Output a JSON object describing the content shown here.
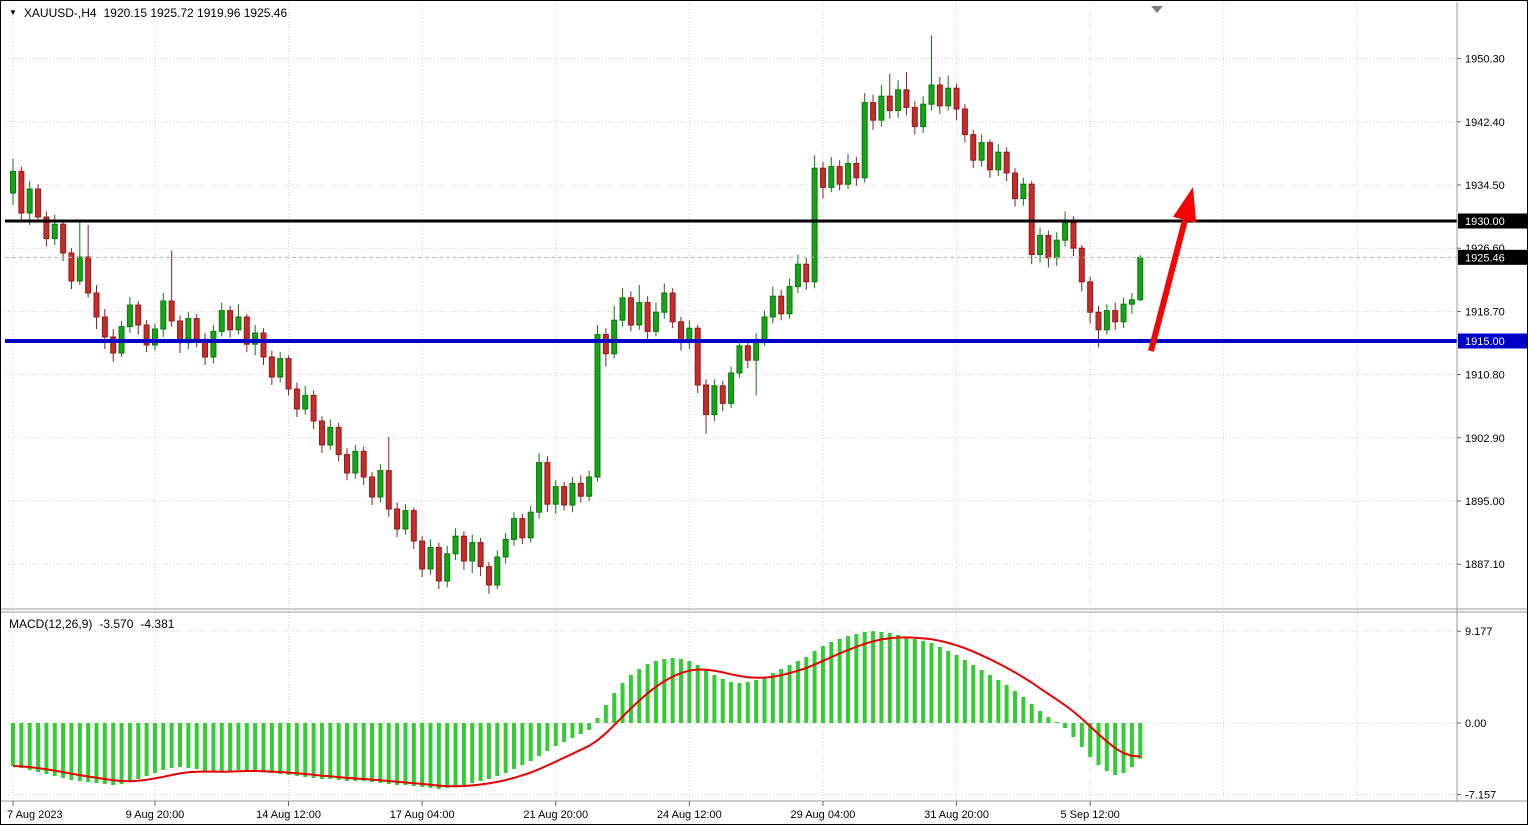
{
  "titlebar": {
    "dropdown_icon": "▼",
    "symbol_period": "XAUUSD-,H4",
    "ohlc": "1920.15 1925.72 1919.96 1925.46"
  },
  "macd_panel": {
    "label": "MACD(12,26,9)",
    "value_main": "-3.570",
    "value_signal": "-4.381"
  },
  "colors": {
    "background": "#ffffff",
    "grid": "#d2d2d2",
    "candle_up": "#17a317",
    "candle_up_border": "#0b7a0b",
    "candle_down": "#c92a2a",
    "candle_down_border": "#8f1d1d",
    "macd_histogram": "#33cc33",
    "macd_signal": "#e60000",
    "support_line": "#0000c8",
    "resistance_line": "#000000",
    "current_price_tag": "#000000",
    "arrow": "#f40404",
    "axis_text": "#000000"
  },
  "chart_data": {
    "type": "candlestick",
    "symbol": "XAUUSD-",
    "timeframe": "H4",
    "title": "XAUUSD-,H4",
    "current_candle": {
      "open": 1920.15,
      "high": 1925.72,
      "low": 1919.96,
      "close": 1925.46
    },
    "y_axis": {
      "labels": [
        "1950.30",
        "1942.40",
        "1934.50",
        "1926.60",
        "1918.70",
        "1910.80",
        "1902.90",
        "1895.00",
        "1887.10"
      ],
      "values": [
        1950.3,
        1942.4,
        1934.5,
        1926.6,
        1918.7,
        1910.8,
        1902.9,
        1895.0,
        1887.1
      ]
    },
    "x_axis": {
      "labels": [
        {
          "text": "7 Aug 2023",
          "index": 0
        },
        {
          "text": "9 Aug 20:00",
          "index": 17
        },
        {
          "text": "14 Aug 12:00",
          "index": 33
        },
        {
          "text": "17 Aug 04:00",
          "index": 49
        },
        {
          "text": "21 Aug 20:00",
          "index": 65
        },
        {
          "text": "24 Aug 12:00",
          "index": 81
        },
        {
          "text": "29 Aug 04:00",
          "index": 97
        },
        {
          "text": "31 Aug 20:00",
          "index": 113
        },
        {
          "text": "5 Sep 12:00",
          "index": 129
        }
      ]
    },
    "levels": {
      "resistance": {
        "price": 1930.0,
        "label": "1930.00"
      },
      "support": {
        "price": 1915.0,
        "label": "1915.00"
      },
      "current_price": {
        "price": 1925.46,
        "label": "1925.46"
      }
    },
    "annotation_arrow": {
      "direction": "up",
      "from_price": 1915.0,
      "to_price": 1934.8
    },
    "candles_ohlc": [
      [
        1933.5,
        1937.8,
        1932.0,
        1936.2
      ],
      [
        1936.2,
        1936.8,
        1930.2,
        1931.0
      ],
      [
        1931.0,
        1935.0,
        1929.5,
        1934.0
      ],
      [
        1934.0,
        1934.6,
        1929.8,
        1930.5
      ],
      [
        1930.5,
        1931.2,
        1926.8,
        1927.8
      ],
      [
        1927.8,
        1930.8,
        1927.0,
        1929.6
      ],
      [
        1929.6,
        1930.0,
        1925.0,
        1926.0
      ],
      [
        1926.0,
        1926.6,
        1921.5,
        1922.5
      ],
      [
        1922.5,
        1929.8,
        1922.0,
        1925.5
      ],
      [
        1925.5,
        1929.5,
        1920.4,
        1921.0
      ],
      [
        1921.0,
        1922.0,
        1916.5,
        1918.0
      ],
      [
        1918.0,
        1919.0,
        1914.0,
        1915.5
      ],
      [
        1915.5,
        1916.5,
        1912.4,
        1913.5
      ],
      [
        1913.5,
        1917.5,
        1913.0,
        1916.8
      ],
      [
        1916.8,
        1920.5,
        1916.0,
        1919.5
      ],
      [
        1919.5,
        1920.0,
        1915.8,
        1917.0
      ],
      [
        1917.0,
        1917.6,
        1913.6,
        1914.5
      ],
      [
        1914.5,
        1917.2,
        1913.8,
        1916.5
      ],
      [
        1916.5,
        1921.0,
        1915.5,
        1920.0
      ],
      [
        1920.0,
        1926.3,
        1916.8,
        1917.5
      ],
      [
        1917.5,
        1918.2,
        1913.5,
        1914.8
      ],
      [
        1914.8,
        1918.6,
        1914.0,
        1917.8
      ],
      [
        1917.8,
        1918.4,
        1914.2,
        1915.2
      ],
      [
        1915.2,
        1916.0,
        1912.0,
        1913.0
      ],
      [
        1913.0,
        1917.0,
        1912.2,
        1916.2
      ],
      [
        1916.2,
        1919.8,
        1915.6,
        1918.8
      ],
      [
        1918.8,
        1919.4,
        1915.4,
        1916.4
      ],
      [
        1916.4,
        1919.6,
        1915.8,
        1918.0
      ],
      [
        1918.0,
        1918.4,
        1913.6,
        1914.6
      ],
      [
        1914.6,
        1917.0,
        1913.2,
        1916.0
      ],
      [
        1916.0,
        1916.6,
        1912.0,
        1913.0
      ],
      [
        1913.0,
        1913.8,
        1909.5,
        1910.5
      ],
      [
        1910.5,
        1913.6,
        1909.8,
        1912.8
      ],
      [
        1912.8,
        1913.2,
        1908.2,
        1909.0
      ],
      [
        1909.0,
        1909.8,
        1905.5,
        1906.5
      ],
      [
        1906.5,
        1909.4,
        1905.8,
        1908.2
      ],
      [
        1908.2,
        1908.8,
        1904.0,
        1905.0
      ],
      [
        1905.0,
        1905.6,
        1901.0,
        1902.0
      ],
      [
        1902.0,
        1905.2,
        1901.4,
        1904.2
      ],
      [
        1904.2,
        1904.8,
        1900.0,
        1900.8
      ],
      [
        1900.8,
        1901.6,
        1897.6,
        1898.5
      ],
      [
        1898.5,
        1902.0,
        1897.8,
        1901.2
      ],
      [
        1901.2,
        1901.8,
        1897.0,
        1898.0
      ],
      [
        1898.0,
        1898.6,
        1894.5,
        1895.5
      ],
      [
        1895.5,
        1899.6,
        1894.8,
        1898.8
      ],
      [
        1898.8,
        1903.0,
        1893.0,
        1894.0
      ],
      [
        1894.0,
        1894.8,
        1890.5,
        1891.5
      ],
      [
        1891.5,
        1894.6,
        1890.8,
        1893.8
      ],
      [
        1893.8,
        1894.2,
        1889.0,
        1890.0
      ],
      [
        1890.0,
        1890.6,
        1885.5,
        1886.5
      ],
      [
        1886.5,
        1890.2,
        1885.8,
        1889.2
      ],
      [
        1889.2,
        1889.8,
        1884.0,
        1885.0
      ],
      [
        1885.0,
        1889.4,
        1884.2,
        1888.4
      ],
      [
        1888.4,
        1891.6,
        1887.6,
        1890.6
      ],
      [
        1890.6,
        1891.2,
        1886.4,
        1887.5
      ],
      [
        1887.5,
        1890.8,
        1886.0,
        1889.8
      ],
      [
        1889.8,
        1890.4,
        1885.6,
        1886.8
      ],
      [
        1886.8,
        1887.4,
        1883.4,
        1884.5
      ],
      [
        1884.5,
        1888.8,
        1884.0,
        1888.0
      ],
      [
        1888.0,
        1891.0,
        1887.2,
        1890.2
      ],
      [
        1890.2,
        1893.6,
        1889.4,
        1892.8
      ],
      [
        1892.8,
        1893.4,
        1889.6,
        1890.4
      ],
      [
        1890.4,
        1894.4,
        1889.8,
        1893.6
      ],
      [
        1893.6,
        1901.0,
        1892.8,
        1899.8
      ],
      [
        1899.8,
        1900.6,
        1893.6,
        1894.6
      ],
      [
        1894.6,
        1897.6,
        1893.4,
        1896.8
      ],
      [
        1896.8,
        1897.4,
        1893.8,
        1894.5
      ],
      [
        1894.5,
        1898.0,
        1893.6,
        1897.2
      ],
      [
        1897.2,
        1898.2,
        1894.8,
        1895.6
      ],
      [
        1895.6,
        1898.8,
        1895.0,
        1898.0
      ],
      [
        1898.0,
        1917.0,
        1897.4,
        1915.8
      ],
      [
        1915.8,
        1916.6,
        1911.8,
        1913.4
      ],
      [
        1913.4,
        1919.4,
        1912.8,
        1917.6
      ],
      [
        1917.6,
        1921.6,
        1916.8,
        1920.4
      ],
      [
        1920.4,
        1921.2,
        1916.2,
        1917.0
      ],
      [
        1917.0,
        1922.0,
        1916.4,
        1919.8
      ],
      [
        1919.8,
        1920.6,
        1915.2,
        1916.2
      ],
      [
        1916.2,
        1919.8,
        1915.6,
        1918.6
      ],
      [
        1918.6,
        1922.2,
        1917.8,
        1921.0
      ],
      [
        1921.0,
        1921.6,
        1916.6,
        1917.4
      ],
      [
        1917.4,
        1918.0,
        1913.8,
        1914.8
      ],
      [
        1914.8,
        1917.6,
        1914.0,
        1916.6
      ],
      [
        1916.6,
        1917.0,
        1908.5,
        1909.5
      ],
      [
        1909.5,
        1910.2,
        1903.4,
        1905.8
      ],
      [
        1905.8,
        1910.2,
        1905.0,
        1909.4
      ],
      [
        1909.4,
        1910.0,
        1906.2,
        1907.2
      ],
      [
        1907.2,
        1911.8,
        1906.6,
        1911.0
      ],
      [
        1911.0,
        1915.2,
        1910.4,
        1914.4
      ],
      [
        1914.4,
        1915.0,
        1911.6,
        1912.6
      ],
      [
        1912.6,
        1916.0,
        1908.2,
        1915.2
      ],
      [
        1915.2,
        1918.8,
        1914.4,
        1918.0
      ],
      [
        1918.0,
        1921.8,
        1917.2,
        1920.6
      ],
      [
        1920.6,
        1921.4,
        1917.6,
        1918.4
      ],
      [
        1918.4,
        1922.8,
        1917.8,
        1921.8
      ],
      [
        1921.8,
        1925.8,
        1921.0,
        1924.6
      ],
      [
        1924.6,
        1925.4,
        1921.4,
        1922.4
      ],
      [
        1922.4,
        1938.2,
        1921.6,
        1936.6
      ],
      [
        1936.6,
        1937.4,
        1932.8,
        1934.2
      ],
      [
        1934.2,
        1938.0,
        1933.6,
        1936.8
      ],
      [
        1936.8,
        1937.6,
        1933.8,
        1934.6
      ],
      [
        1934.6,
        1938.4,
        1934.0,
        1937.2
      ],
      [
        1937.2,
        1938.0,
        1934.4,
        1935.4
      ],
      [
        1935.4,
        1946.0,
        1934.8,
        1944.8
      ],
      [
        1944.8,
        1945.8,
        1941.4,
        1942.6
      ],
      [
        1942.6,
        1947.0,
        1941.8,
        1945.6
      ],
      [
        1945.6,
        1948.4,
        1942.8,
        1943.8
      ],
      [
        1943.8,
        1947.6,
        1942.9,
        1946.4
      ],
      [
        1946.4,
        1948.6,
        1943.2,
        1944.2
      ],
      [
        1944.2,
        1945.0,
        1940.8,
        1941.8
      ],
      [
        1941.8,
        1945.6,
        1941.0,
        1944.6
      ],
      [
        1944.6,
        1953.2,
        1943.8,
        1947.0
      ],
      [
        1947.0,
        1948.0,
        1943.4,
        1944.4
      ],
      [
        1944.4,
        1948.2,
        1943.8,
        1946.6
      ],
      [
        1946.6,
        1947.2,
        1942.6,
        1944.0
      ],
      [
        1944.0,
        1944.6,
        1939.8,
        1940.8
      ],
      [
        1940.8,
        1941.4,
        1936.6,
        1937.6
      ],
      [
        1937.6,
        1940.8,
        1936.8,
        1939.8
      ],
      [
        1939.8,
        1940.2,
        1935.4,
        1936.4
      ],
      [
        1936.4,
        1939.6,
        1935.6,
        1938.6
      ],
      [
        1938.6,
        1939.2,
        1935.0,
        1936.0
      ],
      [
        1936.0,
        1936.6,
        1931.8,
        1932.8
      ],
      [
        1932.8,
        1935.4,
        1931.9,
        1934.6
      ],
      [
        1934.6,
        1935.0,
        1924.6,
        1925.8
      ],
      [
        1925.8,
        1929.2,
        1924.8,
        1928.2
      ],
      [
        1928.2,
        1928.8,
        1924.2,
        1925.4
      ],
      [
        1925.4,
        1928.6,
        1924.4,
        1927.6
      ],
      [
        1927.6,
        1931.2,
        1926.8,
        1929.8
      ],
      [
        1929.8,
        1930.6,
        1925.6,
        1926.6
      ],
      [
        1926.6,
        1927.0,
        1921.2,
        1922.4
      ],
      [
        1922.4,
        1923.0,
        1917.2,
        1918.6
      ],
      [
        1918.6,
        1919.4,
        1914.2,
        1916.4
      ],
      [
        1916.4,
        1919.6,
        1915.8,
        1918.8
      ],
      [
        1918.8,
        1919.8,
        1916.4,
        1917.4
      ],
      [
        1917.4,
        1920.4,
        1916.6,
        1919.6
      ],
      [
        1919.6,
        1921.0,
        1918.4,
        1920.15
      ],
      [
        1920.15,
        1925.72,
        1919.96,
        1925.46
      ]
    ],
    "macd": {
      "label": "MACD(12,26,9)",
      "main_last": -3.57,
      "signal_last": -4.381,
      "y_axis": {
        "labels": [
          "9.177",
          "0.00",
          "-7.157"
        ],
        "values": [
          9.177,
          0,
          -7.157
        ]
      },
      "histogram": [
        -4.3,
        -4.5,
        -4.7,
        -4.9,
        -5.1,
        -5.3,
        -5.5,
        -5.7,
        -5.8,
        -5.9,
        -6.0,
        -6.1,
        -6.2,
        -6.1,
        -5.9,
        -5.6,
        -5.3,
        -5.0,
        -4.7,
        -4.5,
        -4.4,
        -4.5,
        -4.6,
        -4.8,
        -4.9,
        -4.9,
        -4.8,
        -4.7,
        -4.7,
        -4.8,
        -4.9,
        -5.0,
        -5.1,
        -5.2,
        -5.3,
        -5.4,
        -5.5,
        -5.6,
        -5.6,
        -5.7,
        -5.8,
        -5.8,
        -5.8,
        -5.9,
        -6.0,
        -6.1,
        -6.2,
        -6.2,
        -6.3,
        -6.4,
        -6.5,
        -6.6,
        -6.5,
        -6.4,
        -6.2,
        -6.0,
        -5.8,
        -5.6,
        -5.3,
        -5.0,
        -4.6,
        -4.2,
        -3.8,
        -3.3,
        -2.8,
        -2.3,
        -1.9,
        -1.5,
        -1.1,
        -0.7,
        0.5,
        1.8,
        3.0,
        4.0,
        4.8,
        5.4,
        5.9,
        6.2,
        6.4,
        6.5,
        6.4,
        6.2,
        5.8,
        5.3,
        4.8,
        4.4,
        4.1,
        4.0,
        4.1,
        4.3,
        4.6,
        5.0,
        5.4,
        5.8,
        6.2,
        6.6,
        7.2,
        7.7,
        8.1,
        8.4,
        8.7,
        8.9,
        9.1,
        9.177,
        9.1,
        9.0,
        8.8,
        8.6,
        8.4,
        8.2,
        8.0,
        7.6,
        7.2,
        6.8,
        6.3,
        5.8,
        5.3,
        4.8,
        4.3,
        3.8,
        3.2,
        2.6,
        1.9,
        1.2,
        0.6,
        0.1,
        -0.5,
        -1.4,
        -2.4,
        -3.4,
        -4.2,
        -4.8,
        -5.2,
        -5.0,
        -4.4,
        -3.57
      ]
    }
  }
}
